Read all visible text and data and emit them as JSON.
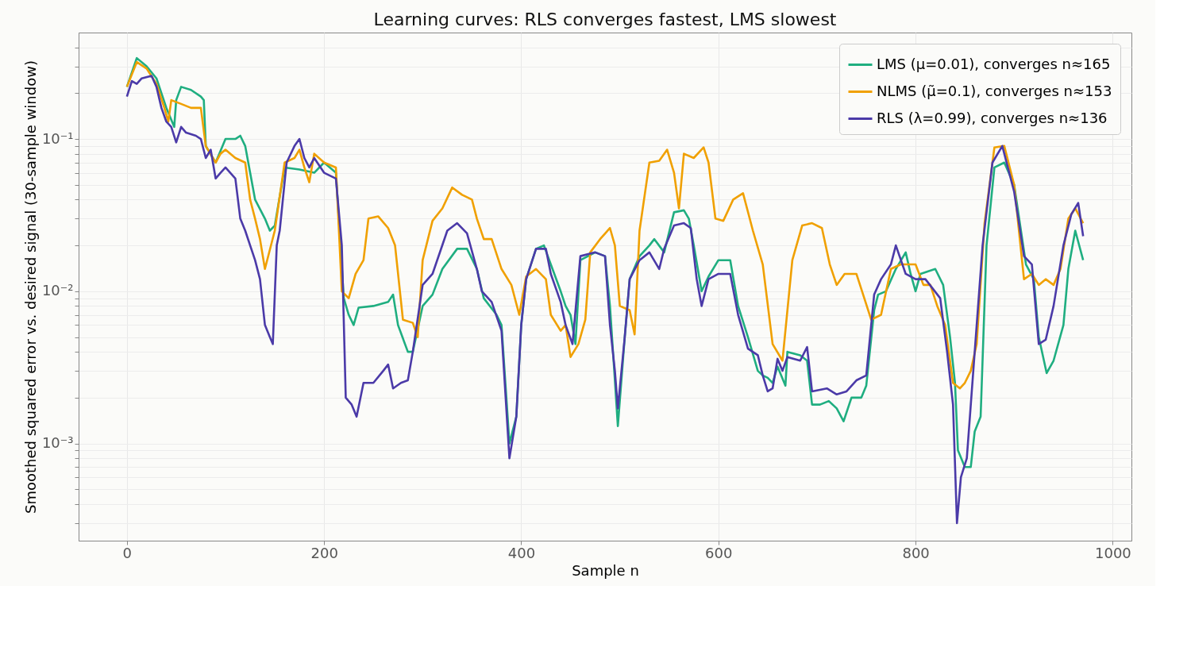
{
  "chart_data": {
    "type": "line",
    "title": "Learning curves: RLS converges fastest, LMS slowest",
    "xlabel": "Sample n",
    "ylabel": "Smoothed squared error vs. desired signal (30-sample window)",
    "log": "y",
    "grid": true,
    "legend": "top right",
    "line_style": "solid",
    "marker": "none",
    "xlim": [
      -49,
      1019
    ],
    "xticks": [
      0,
      200,
      400,
      600,
      800,
      1000
    ],
    "ylim": [
      0.00023,
      0.5
    ],
    "yticks": [
      {
        "value": 0.0003,
        "label": null
      },
      {
        "value": 0.0004,
        "label": null
      },
      {
        "value": 0.0005,
        "label": null
      },
      {
        "value": 0.0006,
        "label": null
      },
      {
        "value": 0.0007,
        "label": null
      },
      {
        "value": 0.0008,
        "label": null
      },
      {
        "value": 0.0009,
        "label": null
      },
      {
        "value": 0.001,
        "label": "10⁻³"
      },
      {
        "value": 0.002,
        "label": null
      },
      {
        "value": 0.003,
        "label": null
      },
      {
        "value": 0.004,
        "label": null
      },
      {
        "value": 0.005,
        "label": null
      },
      {
        "value": 0.006,
        "label": null
      },
      {
        "value": 0.007,
        "label": null
      },
      {
        "value": 0.008,
        "label": null
      },
      {
        "value": 0.009,
        "label": null
      },
      {
        "value": 0.01,
        "label": "10⁻²"
      },
      {
        "value": 0.02,
        "label": null
      },
      {
        "value": 0.03,
        "label": null
      },
      {
        "value": 0.04,
        "label": null
      },
      {
        "value": 0.05,
        "label": null
      },
      {
        "value": 0.06,
        "label": null
      },
      {
        "value": 0.07,
        "label": null
      },
      {
        "value": 0.08,
        "label": null
      },
      {
        "value": 0.09,
        "label": null
      },
      {
        "value": 0.1,
        "label": "10⁻¹"
      },
      {
        "value": 0.2,
        "label": null
      },
      {
        "value": 0.3,
        "label": null
      },
      {
        "value": 0.4,
        "label": null
      }
    ],
    "series": [
      {
        "name": "LMS (μ=0.01), converges n≈165",
        "color": "#1fae80",
        "x": [
          0,
          10,
          20,
          30,
          40,
          48,
          50,
          55,
          65,
          75,
          78,
          80,
          90,
          100,
          110,
          115,
          120,
          125,
          130,
          140,
          145,
          150,
          160,
          175,
          190,
          200,
          212,
          220,
          225,
          230,
          235,
          250,
          265,
          270,
          275,
          285,
          290,
          300,
          310,
          320,
          335,
          345,
          355,
          362,
          375,
          380,
          388,
          395,
          400,
          405,
          415,
          423,
          430,
          440,
          445,
          450,
          455,
          460,
          475,
          485,
          490,
          495,
          498,
          505,
          510,
          520,
          530,
          535,
          545,
          555,
          565,
          570,
          575,
          583,
          590,
          600,
          612,
          620,
          630,
          640,
          645,
          650,
          655,
          660,
          668,
          670,
          683,
          690,
          695,
          703,
          712,
          720,
          727,
          735,
          745,
          750,
          758,
          762,
          770,
          780,
          790,
          795,
          800,
          805,
          820,
          828,
          835,
          840,
          843,
          850,
          856,
          860,
          866,
          872,
          880,
          890,
          900,
          912,
          920,
          925,
          933,
          940,
          950,
          955,
          962,
          970
        ],
        "values": [
          0.22,
          0.34,
          0.3,
          0.25,
          0.16,
          0.12,
          0.18,
          0.22,
          0.21,
          0.19,
          0.18,
          0.09,
          0.07,
          0.1,
          0.1,
          0.105,
          0.09,
          0.06,
          0.04,
          0.03,
          0.025,
          0.027,
          0.065,
          0.063,
          0.06,
          0.07,
          0.06,
          0.009,
          0.007,
          0.006,
          0.0078,
          0.008,
          0.0085,
          0.0095,
          0.006,
          0.004,
          0.004,
          0.008,
          0.0095,
          0.014,
          0.019,
          0.019,
          0.014,
          0.009,
          0.007,
          0.006,
          0.001,
          0.0015,
          0.006,
          0.012,
          0.019,
          0.02,
          0.015,
          0.01,
          0.008,
          0.007,
          0.0045,
          0.016,
          0.018,
          0.017,
          0.008,
          0.0026,
          0.0013,
          0.005,
          0.012,
          0.017,
          0.02,
          0.022,
          0.018,
          0.033,
          0.034,
          0.03,
          0.02,
          0.01,
          0.0125,
          0.016,
          0.016,
          0.008,
          0.005,
          0.003,
          0.0028,
          0.0027,
          0.0025,
          0.0032,
          0.0024,
          0.004,
          0.0038,
          0.0035,
          0.0018,
          0.0018,
          0.0019,
          0.0017,
          0.0014,
          0.002,
          0.002,
          0.0024,
          0.0075,
          0.0095,
          0.01,
          0.014,
          0.018,
          0.013,
          0.01,
          0.013,
          0.014,
          0.011,
          0.005,
          0.0025,
          0.0009,
          0.0007,
          0.0007,
          0.0012,
          0.0015,
          0.02,
          0.065,
          0.07,
          0.05,
          0.015,
          0.012,
          0.005,
          0.0029,
          0.0035,
          0.006,
          0.014,
          0.025,
          0.016
        ]
      },
      {
        "name": "NLMS (μ̃=0.1), converges n≈153",
        "color": "#f0a000",
        "x": [
          0,
          10,
          20,
          30,
          38,
          42,
          45,
          55,
          65,
          75,
          80,
          90,
          95,
          100,
          110,
          120,
          125,
          130,
          135,
          140,
          150,
          160,
          170,
          175,
          180,
          185,
          190,
          200,
          212,
          218,
          225,
          232,
          240,
          245,
          255,
          265,
          272,
          280,
          290,
          295,
          300,
          310,
          320,
          330,
          340,
          350,
          355,
          362,
          370,
          380,
          390,
          398,
          405,
          415,
          425,
          430,
          440,
          445,
          450,
          458,
          465,
          470,
          480,
          490,
          495,
          500,
          510,
          515,
          520,
          530,
          540,
          548,
          555,
          560,
          565,
          575,
          585,
          590,
          597,
          605,
          615,
          625,
          635,
          645,
          655,
          665,
          675,
          685,
          695,
          705,
          713,
          720,
          728,
          740,
          748,
          755,
          765,
          775,
          785,
          800,
          808,
          815,
          822,
          830,
          838,
          845,
          850,
          856,
          862,
          870,
          880,
          890,
          900,
          910,
          918,
          925,
          932,
          940,
          947,
          955,
          962,
          970
        ],
        "values": [
          0.22,
          0.32,
          0.29,
          0.23,
          0.16,
          0.13,
          0.18,
          0.17,
          0.16,
          0.16,
          0.09,
          0.07,
          0.08,
          0.085,
          0.075,
          0.07,
          0.04,
          0.03,
          0.022,
          0.014,
          0.025,
          0.07,
          0.075,
          0.085,
          0.065,
          0.052,
          0.08,
          0.07,
          0.065,
          0.01,
          0.009,
          0.013,
          0.016,
          0.03,
          0.031,
          0.026,
          0.02,
          0.0065,
          0.0062,
          0.005,
          0.016,
          0.029,
          0.035,
          0.048,
          0.043,
          0.04,
          0.03,
          0.022,
          0.022,
          0.014,
          0.011,
          0.007,
          0.0125,
          0.014,
          0.012,
          0.007,
          0.0055,
          0.006,
          0.0037,
          0.0045,
          0.0065,
          0.018,
          0.022,
          0.026,
          0.02,
          0.008,
          0.0075,
          0.0052,
          0.025,
          0.07,
          0.072,
          0.085,
          0.06,
          0.035,
          0.08,
          0.075,
          0.088,
          0.07,
          0.03,
          0.029,
          0.04,
          0.044,
          0.025,
          0.015,
          0.0045,
          0.0035,
          0.016,
          0.027,
          0.028,
          0.026,
          0.015,
          0.011,
          0.013,
          0.013,
          0.009,
          0.0065,
          0.007,
          0.014,
          0.015,
          0.015,
          0.011,
          0.011,
          0.008,
          0.006,
          0.0025,
          0.0023,
          0.0025,
          0.003,
          0.0045,
          0.028,
          0.088,
          0.09,
          0.05,
          0.012,
          0.013,
          0.011,
          0.012,
          0.011,
          0.014,
          0.03,
          0.035,
          0.028
        ]
      },
      {
        "name": "RLS (λ=0.99), converges n≈136",
        "color": "#4b3aa8",
        "x": [
          0,
          5,
          10,
          15,
          25,
          30,
          35,
          40,
          45,
          50,
          55,
          60,
          70,
          75,
          80,
          85,
          90,
          95,
          100,
          110,
          115,
          120,
          125,
          130,
          135,
          140,
          145,
          148,
          152,
          155,
          162,
          170,
          175,
          180,
          185,
          190,
          200,
          212,
          218,
          222,
          228,
          233,
          240,
          250,
          260,
          265,
          270,
          278,
          285,
          290,
          300,
          310,
          325,
          335,
          345,
          355,
          360,
          370,
          380,
          388,
          395,
          400,
          405,
          415,
          425,
          430,
          440,
          445,
          452,
          460,
          475,
          485,
          490,
          495,
          498,
          505,
          510,
          520,
          530,
          540,
          545,
          555,
          565,
          572,
          578,
          583,
          590,
          600,
          612,
          620,
          630,
          640,
          645,
          650,
          655,
          660,
          665,
          670,
          683,
          690,
          695,
          710,
          720,
          730,
          740,
          750,
          758,
          765,
          775,
          780,
          790,
          800,
          810,
          825,
          832,
          838,
          842,
          846,
          852,
          860,
          868,
          878,
          888,
          900,
          910,
          918,
          925,
          932,
          940,
          950,
          958,
          965,
          970
        ],
        "values": [
          0.19,
          0.24,
          0.23,
          0.25,
          0.26,
          0.22,
          0.16,
          0.13,
          0.12,
          0.095,
          0.12,
          0.11,
          0.105,
          0.1,
          0.075,
          0.085,
          0.055,
          0.06,
          0.065,
          0.055,
          0.03,
          0.025,
          0.02,
          0.016,
          0.012,
          0.006,
          0.005,
          0.0045,
          0.02,
          0.025,
          0.07,
          0.09,
          0.1,
          0.075,
          0.065,
          0.075,
          0.06,
          0.055,
          0.02,
          0.002,
          0.0018,
          0.0015,
          0.0025,
          0.0025,
          0.003,
          0.0033,
          0.0023,
          0.0025,
          0.0026,
          0.004,
          0.011,
          0.013,
          0.025,
          0.028,
          0.024,
          0.014,
          0.01,
          0.0085,
          0.0055,
          0.0008,
          0.0015,
          0.006,
          0.012,
          0.019,
          0.019,
          0.013,
          0.0085,
          0.006,
          0.0045,
          0.017,
          0.018,
          0.017,
          0.006,
          0.003,
          0.0017,
          0.005,
          0.012,
          0.016,
          0.018,
          0.014,
          0.019,
          0.027,
          0.028,
          0.026,
          0.012,
          0.008,
          0.012,
          0.013,
          0.013,
          0.007,
          0.0042,
          0.0038,
          0.0028,
          0.0022,
          0.0023,
          0.0036,
          0.003,
          0.0037,
          0.0035,
          0.0043,
          0.0022,
          0.0023,
          0.0021,
          0.0022,
          0.0026,
          0.0028,
          0.0095,
          0.012,
          0.015,
          0.02,
          0.013,
          0.012,
          0.012,
          0.009,
          0.004,
          0.0018,
          0.0003,
          0.0006,
          0.0008,
          0.004,
          0.02,
          0.07,
          0.09,
          0.045,
          0.017,
          0.015,
          0.0045,
          0.0048,
          0.008,
          0.02,
          0.032,
          0.038,
          0.023
        ]
      }
    ]
  }
}
